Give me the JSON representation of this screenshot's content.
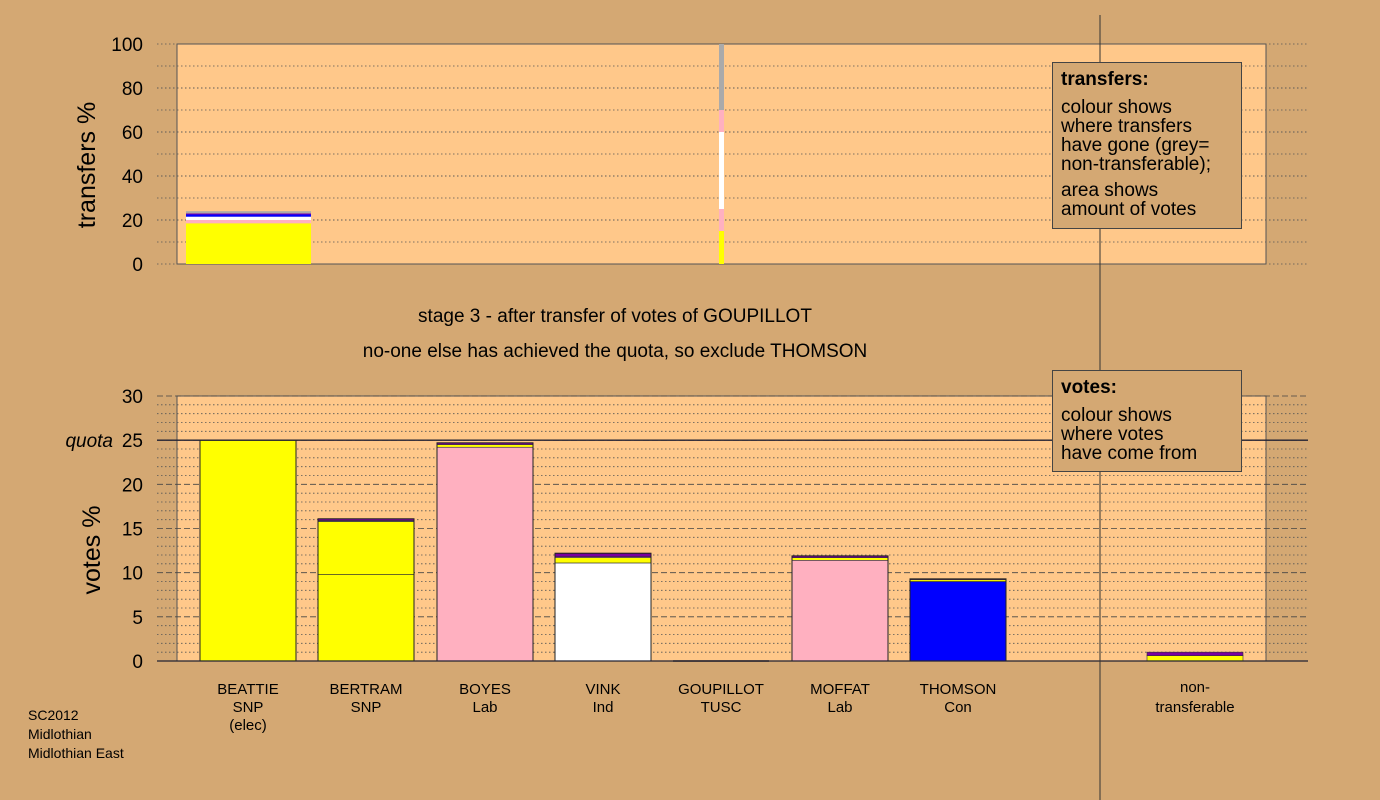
{
  "titles": {
    "stage": "stage 3 - after transfer of votes of GOUPILLOT",
    "status": "no-one else has achieved the quota, so exclude THOMSON"
  },
  "legend_transfers": {
    "heading": "transfers:",
    "lines": [
      "colour shows",
      "where transfers",
      "have gone (grey=",
      "non-transferable);"
    ],
    "lines2": [
      "area shows",
      "amount of votes"
    ]
  },
  "legend_votes": {
    "heading": "votes:",
    "lines": [
      "colour shows",
      "where votes",
      "have come from"
    ]
  },
  "footer": [
    "SC2012",
    "Midlothian",
    "Midlothian East"
  ],
  "colors": {
    "background": "#d4a873",
    "plot": "#ffc88a",
    "SNP": "#ffff00",
    "Lab": "#ffb0c0",
    "Ind": "#ffffff",
    "Con": "#0000ff",
    "TUSC": "#7a00a0",
    "nontransferable": "#aaaaaa"
  },
  "chart_data": [
    {
      "type": "bar",
      "name": "transfers",
      "ylabel": "transfers %",
      "ylim": [
        0,
        100
      ],
      "yticks": [
        0,
        20,
        40,
        60,
        80,
        100
      ],
      "categories": [
        "BEATTIE",
        "BERTRAM",
        "BOYES",
        "VINK",
        "GOUPILLOT",
        "MOFFAT",
        "THOMSON"
      ],
      "transfer_bar": {
        "candidate": "BEATTIE",
        "segments": [
          {
            "party": "SNP",
            "value": 18.5
          },
          {
            "party": "Lab",
            "value": 1.5
          },
          {
            "party": "Ind",
            "value": 1.5
          },
          {
            "party": "Con",
            "value": 1.0
          },
          {
            "party": "TUSC",
            "value": 0.5
          },
          {
            "party": "nontransferable",
            "value": 1.0
          }
        ]
      },
      "transfer_strip": [
        {
          "party": "SNP",
          "from": 0,
          "to": 15
        },
        {
          "party": "Lab",
          "from": 15,
          "to": 25
        },
        {
          "party": "Ind",
          "from": 25,
          "to": 60
        },
        {
          "party": "Lab",
          "from": 60,
          "to": 70
        },
        {
          "party": "nontransferable",
          "from": 70,
          "to": 100
        }
      ]
    },
    {
      "type": "bar",
      "name": "votes",
      "ylabel": "votes %",
      "ylim": [
        0,
        30
      ],
      "yticks": [
        0,
        5,
        10,
        15,
        20,
        25,
        30
      ],
      "quota": 25,
      "quota_label": "quota",
      "candidates": [
        {
          "name": "BEATTIE",
          "party": "SNP",
          "note": "(elec)",
          "segments": [
            {
              "party": "SNP",
              "value": 25.0
            }
          ]
        },
        {
          "name": "BERTRAM",
          "party": "SNP",
          "segments": [
            {
              "party": "SNP",
              "value": 9.8
            },
            {
              "party": "SNP",
              "value": 6.0
            },
            {
              "party": "Con",
              "value": 0.1
            },
            {
              "party": "TUSC",
              "value": 0.2
            }
          ]
        },
        {
          "name": "BOYES",
          "party": "Lab",
          "segments": [
            {
              "party": "Lab",
              "value": 24.2
            },
            {
              "party": "SNP",
              "value": 0.3
            },
            {
              "party": "TUSC",
              "value": 0.2
            }
          ]
        },
        {
          "name": "VINK",
          "party": "Ind",
          "segments": [
            {
              "party": "Ind",
              "value": 11.1
            },
            {
              "party": "SNP",
              "value": 0.6
            },
            {
              "party": "Lab",
              "value": 0.1
            },
            {
              "party": "TUSC",
              "value": 0.4
            }
          ]
        },
        {
          "name": "GOUPILLOT",
          "party": "TUSC",
          "segments": []
        },
        {
          "name": "MOFFAT",
          "party": "Lab",
          "segments": [
            {
              "party": "Lab",
              "value": 11.4
            },
            {
              "party": "SNP",
              "value": 0.3
            },
            {
              "party": "TUSC",
              "value": 0.2
            }
          ]
        },
        {
          "name": "THOMSON",
          "party": "Con",
          "segments": [
            {
              "party": "Con",
              "value": 9.0
            },
            {
              "party": "SNP",
              "value": 0.2
            },
            {
              "party": "TUSC",
              "value": 0.1
            }
          ]
        }
      ],
      "nontransferable": {
        "label": "non-transferable",
        "segments": [
          {
            "party": "SNP",
            "value": 0.6
          },
          {
            "party": "TUSC",
            "value": 0.4
          }
        ]
      }
    }
  ]
}
